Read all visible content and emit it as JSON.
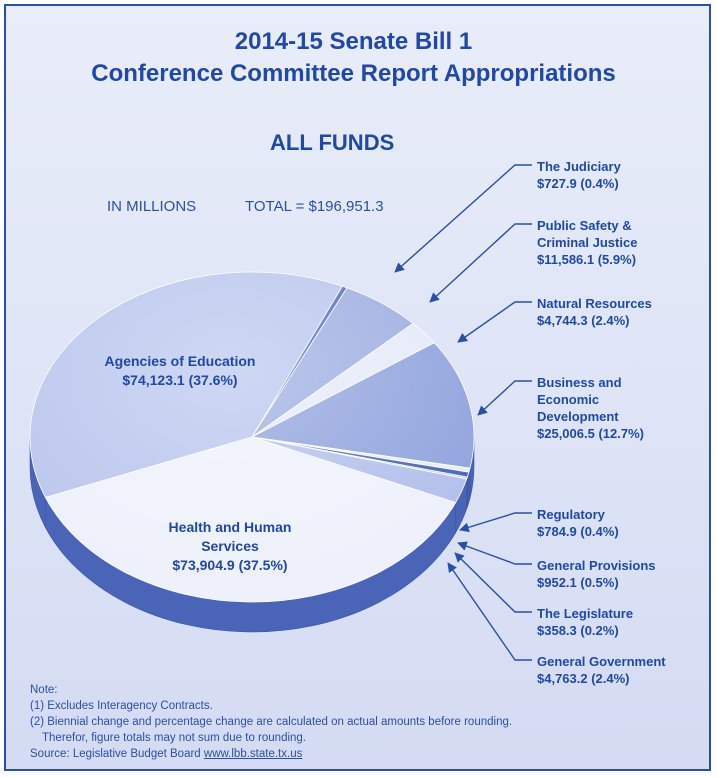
{
  "header": {
    "title_line1": "2014-15 Senate Bill 1",
    "title_line2": "Conference Committee Report Appropriations",
    "subtitle": "ALL FUNDS",
    "units": "IN MILLIONS",
    "total": "TOTAL = $196,951.3"
  },
  "chart_data": {
    "type": "pie",
    "title": "2014-15 Senate Bill 1 Conference Committee Report Appropriations",
    "subtitle": "ALL FUNDS",
    "units": "IN MILLIONS",
    "total": 196951.3,
    "slices": [
      {
        "label": "The Judiciary",
        "value": 727.9,
        "percent": 0.4,
        "value_text": "$727.9 (0.4%)",
        "color": "#4a67bd"
      },
      {
        "label": "Public Safety & Criminal Justice",
        "value": 11586.1,
        "percent": 5.9,
        "value_text": "$11,586.1 (5.9%)",
        "color": "#98a9df"
      },
      {
        "label": "Natural Resources",
        "value": 4744.3,
        "percent": 2.4,
        "value_text": "$4,744.3 (2.4%)",
        "color": "#e4e9f8"
      },
      {
        "label": "Business and Economic Development",
        "value": 25006.5,
        "percent": 12.7,
        "value_text": "$25,006.5 (12.7%)",
        "color": "#8a9edb"
      },
      {
        "label": "Regulatory",
        "value": 784.9,
        "percent": 0.4,
        "value_text": "$784.9 (0.4%)",
        "color": "#e6ebf9"
      },
      {
        "label": "General Provisions",
        "value": 952.1,
        "percent": 0.5,
        "value_text": "$952.1 (0.5%)",
        "color": "#3f5cb6"
      },
      {
        "label": "The Legislature",
        "value": 358.3,
        "percent": 0.2,
        "value_text": "$358.3 (0.2%)",
        "color": "#bcc8ee"
      },
      {
        "label": "General Government",
        "value": 4763.2,
        "percent": 2.4,
        "value_text": "$4,763.2 (2.4%)",
        "color": "#aebcea"
      },
      {
        "label": "Health and Human Services",
        "value": 73904.9,
        "percent": 37.5,
        "value_text": "$73,904.9 (37.5%)",
        "color": "#edf0fb"
      },
      {
        "label": "Agencies of Education",
        "value": 74123.1,
        "percent": 37.6,
        "value_text": "$74,123.1 (37.6%)",
        "color": "#b5c2ec"
      }
    ]
  },
  "callouts": {
    "judiciary": {
      "l1": "The Judiciary",
      "l2": "$727.9 (0.4%)"
    },
    "public_safety": {
      "l1": "Public Safety &",
      "l2": "Criminal Justice",
      "l3": "$11,586.1 (5.9%)"
    },
    "natural": {
      "l1": "Natural Resources",
      "l2": "$4,744.3 (2.4%)"
    },
    "business": {
      "l1": "Business and",
      "l2": "Economic",
      "l3": "Development",
      "l4": "$25,006.5 (12.7%)"
    },
    "regulatory": {
      "l1": "Regulatory",
      "l2": "$784.9 (0.4%)"
    },
    "general_provisions": {
      "l1": "General Provisions",
      "l2": "$952.1 (0.5%)"
    },
    "legislature": {
      "l1": "The Legislature",
      "l2": "$358.3 (0.2%)"
    },
    "general_government": {
      "l1": "General Government",
      "l2": "$4,763.2 (2.4%)"
    },
    "education": {
      "l1": "Agencies of Education",
      "l2": "$74,123.1 (37.6%)"
    },
    "hhs": {
      "l1": "Health and Human",
      "l2": "Services",
      "l3": "$73,904.9 (37.5%)"
    }
  },
  "notes": {
    "heading": "Note:",
    "n1": "(1) Excludes Interagency Contracts.",
    "n2": "(2) Biennial change and percentage change are calculated on actual amounts before rounding.",
    "n3": "Therefor, figure totals may not sum due to rounding.",
    "source_prefix": "Source: Legislative Budget Board",
    "source_link": "www.lbb.state.tx.us"
  },
  "colors": {
    "accent": "#1f48a8",
    "border": "#2a4fa6",
    "side": "#4a64b8"
  }
}
